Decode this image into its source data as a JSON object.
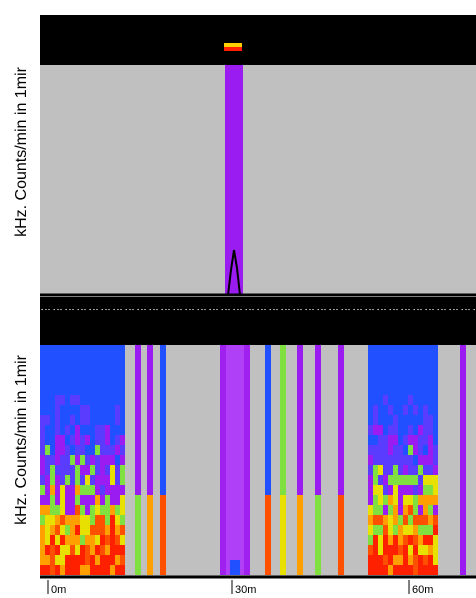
{
  "panels": [
    {
      "axis_label": "kHz. Counts/min in 1mir"
    },
    {
      "axis_label": "kHz. Counts/min in 1mir"
    }
  ],
  "time_ticks": [
    "0m",
    "30m",
    "60m"
  ]
}
